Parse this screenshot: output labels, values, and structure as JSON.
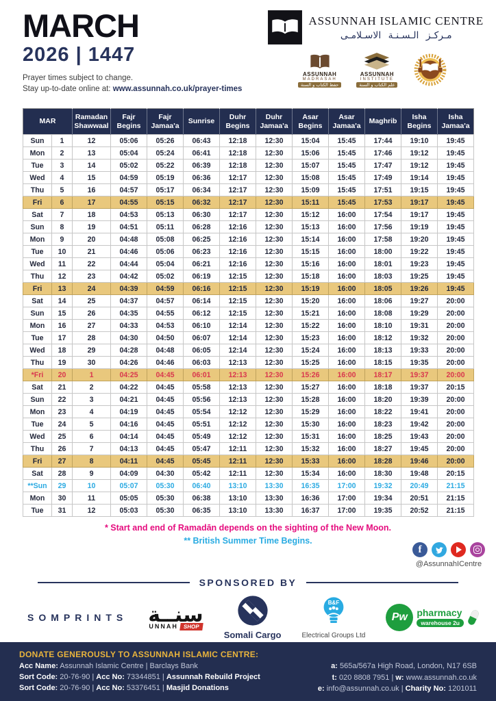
{
  "header": {
    "month": "MARCH",
    "year_line": "2026 | 1447",
    "note_line1": "Prayer times subject to change.",
    "note_line2_prefix": "Stay up-to-date online at: ",
    "note_line2_url": "www.assunnah.co.uk/prayer-times",
    "brand": {
      "name_en": "ASSUNNAH ISLAMIC CENTRE",
      "name_ar": "مـركـز الـسـنـة الاسـلامـى",
      "madrasah": {
        "line1": "ASSUNNAH",
        "line2": "MADRASAH",
        "line3": "حفظ الكتاب و السنة"
      },
      "institute": {
        "line1": "ASSUNNAH",
        "line2": "INSTITUTE",
        "line3": "علم الكتاب و السنة"
      }
    }
  },
  "table": {
    "col_headers": [
      "MAR",
      "Ramadan\nShawwaal",
      "Fajr\nBegins",
      "Fajr\nJamaa'a",
      "Sunrise",
      "Duhr\nBegins",
      "Duhr\nJamaa'a",
      "Asar\nBegins",
      "Asar\nJamaa'a",
      "Maghrib",
      "Isha\nBegins",
      "Isha\nJamaa'a"
    ],
    "rows": [
      {
        "day": "Sun",
        "date": "1",
        "ramadan": "12",
        "times": [
          "05:06",
          "05:26",
          "06:43",
          "12:18",
          "12:30",
          "15:04",
          "15:45",
          "17:44",
          "19:10",
          "19:45"
        ],
        "style": "default"
      },
      {
        "day": "Mon",
        "date": "2",
        "ramadan": "13",
        "times": [
          "05:04",
          "05:24",
          "06:41",
          "12:18",
          "12:30",
          "15:06",
          "15:45",
          "17:46",
          "19:12",
          "19:45"
        ],
        "style": "default"
      },
      {
        "day": "Tue",
        "date": "3",
        "ramadan": "14",
        "times": [
          "05:02",
          "05:22",
          "06:39",
          "12:18",
          "12:30",
          "15:07",
          "15:45",
          "17:47",
          "19:12",
          "19:45"
        ],
        "style": "default"
      },
      {
        "day": "Wed",
        "date": "4",
        "ramadan": "15",
        "times": [
          "04:59",
          "05:19",
          "06:36",
          "12:17",
          "12:30",
          "15:08",
          "15:45",
          "17:49",
          "19:14",
          "19:45"
        ],
        "style": "default"
      },
      {
        "day": "Thu",
        "date": "5",
        "ramadan": "16",
        "times": [
          "04:57",
          "05:17",
          "06:34",
          "12:17",
          "12:30",
          "15:09",
          "15:45",
          "17:51",
          "19:15",
          "19:45"
        ],
        "style": "default"
      },
      {
        "day": "Fri",
        "date": "6",
        "ramadan": "17",
        "times": [
          "04:55",
          "05:15",
          "06:32",
          "12:17",
          "12:30",
          "15:11",
          "15:45",
          "17:53",
          "19:17",
          "19:45"
        ],
        "style": "gold"
      },
      {
        "day": "Sat",
        "date": "7",
        "ramadan": "18",
        "times": [
          "04:53",
          "05:13",
          "06:30",
          "12:17",
          "12:30",
          "15:12",
          "16:00",
          "17:54",
          "19:17",
          "19:45"
        ],
        "style": "default"
      },
      {
        "day": "Sun",
        "date": "8",
        "ramadan": "19",
        "times": [
          "04:51",
          "05:11",
          "06:28",
          "12:16",
          "12:30",
          "15:13",
          "16:00",
          "17:56",
          "19:19",
          "19:45"
        ],
        "style": "default"
      },
      {
        "day": "Mon",
        "date": "9",
        "ramadan": "20",
        "times": [
          "04:48",
          "05:08",
          "06:25",
          "12:16",
          "12:30",
          "15:14",
          "16:00",
          "17:58",
          "19:20",
          "19:45"
        ],
        "style": "default"
      },
      {
        "day": "Tue",
        "date": "10",
        "ramadan": "21",
        "times": [
          "04:46",
          "05:06",
          "06:23",
          "12:16",
          "12:30",
          "15:15",
          "16:00",
          "18:00",
          "19:22",
          "19:45"
        ],
        "style": "default"
      },
      {
        "day": "Wed",
        "date": "11",
        "ramadan": "22",
        "times": [
          "04:44",
          "05:04",
          "06:21",
          "12:16",
          "12:30",
          "15:16",
          "16:00",
          "18:01",
          "19:23",
          "19:45"
        ],
        "style": "default"
      },
      {
        "day": "Thu",
        "date": "12",
        "ramadan": "23",
        "times": [
          "04:42",
          "05:02",
          "06:19",
          "12:15",
          "12:30",
          "15:18",
          "16:00",
          "18:03",
          "19:25",
          "19:45"
        ],
        "style": "default"
      },
      {
        "day": "Fri",
        "date": "13",
        "ramadan": "24",
        "times": [
          "04:39",
          "04:59",
          "06:16",
          "12:15",
          "12:30",
          "15:19",
          "16:00",
          "18:05",
          "19:26",
          "19:45"
        ],
        "style": "gold"
      },
      {
        "day": "Sat",
        "date": "14",
        "ramadan": "25",
        "times": [
          "04:37",
          "04:57",
          "06:14",
          "12:15",
          "12:30",
          "15:20",
          "16:00",
          "18:06",
          "19:27",
          "20:00"
        ],
        "style": "default"
      },
      {
        "day": "Sun",
        "date": "15",
        "ramadan": "26",
        "times": [
          "04:35",
          "04:55",
          "06:12",
          "12:15",
          "12:30",
          "15:21",
          "16:00",
          "18:08",
          "19:29",
          "20:00"
        ],
        "style": "default"
      },
      {
        "day": "Mon",
        "date": "16",
        "ramadan": "27",
        "times": [
          "04:33",
          "04:53",
          "06:10",
          "12:14",
          "12:30",
          "15:22",
          "16:00",
          "18:10",
          "19:31",
          "20:00"
        ],
        "style": "default"
      },
      {
        "day": "Tue",
        "date": "17",
        "ramadan": "28",
        "times": [
          "04:30",
          "04:50",
          "06:07",
          "12:14",
          "12:30",
          "15:23",
          "16:00",
          "18:12",
          "19:32",
          "20:00"
        ],
        "style": "default"
      },
      {
        "day": "Wed",
        "date": "18",
        "ramadan": "29",
        "times": [
          "04:28",
          "04:48",
          "06:05",
          "12:14",
          "12:30",
          "15:24",
          "16:00",
          "18:13",
          "19:33",
          "20:00"
        ],
        "style": "default"
      },
      {
        "day": "Thu",
        "date": "19",
        "ramadan": "30",
        "times": [
          "04:26",
          "04:46",
          "06:03",
          "12:13",
          "12:30",
          "15:25",
          "16:00",
          "18:15",
          "19:35",
          "20:00"
        ],
        "style": "default"
      },
      {
        "day": "*Fri",
        "date": "20",
        "ramadan": "1",
        "times": [
          "04:25",
          "04:45",
          "06:01",
          "12:13",
          "12:30",
          "15:26",
          "16:00",
          "18:17",
          "19:37",
          "20:00"
        ],
        "style": "gold-red"
      },
      {
        "day": "Sat",
        "date": "21",
        "ramadan": "2",
        "times": [
          "04:22",
          "04:45",
          "05:58",
          "12:13",
          "12:30",
          "15:27",
          "16:00",
          "18:18",
          "19:37",
          "20:15"
        ],
        "style": "default"
      },
      {
        "day": "Sun",
        "date": "22",
        "ramadan": "3",
        "times": [
          "04:21",
          "04:45",
          "05:56",
          "12:13",
          "12:30",
          "15:28",
          "16:00",
          "18:20",
          "19:39",
          "20:00"
        ],
        "style": "default"
      },
      {
        "day": "Mon",
        "date": "23",
        "ramadan": "4",
        "times": [
          "04:19",
          "04:45",
          "05:54",
          "12:12",
          "12:30",
          "15:29",
          "16:00",
          "18:22",
          "19:41",
          "20:00"
        ],
        "style": "default"
      },
      {
        "day": "Tue",
        "date": "24",
        "ramadan": "5",
        "times": [
          "04:16",
          "04:45",
          "05:51",
          "12:12",
          "12:30",
          "15:30",
          "16:00",
          "18:23",
          "19:42",
          "20:00"
        ],
        "style": "default"
      },
      {
        "day": "Wed",
        "date": "25",
        "ramadan": "6",
        "times": [
          "04:14",
          "04:45",
          "05:49",
          "12:12",
          "12:30",
          "15:31",
          "16:00",
          "18:25",
          "19:43",
          "20:00"
        ],
        "style": "default"
      },
      {
        "day": "Thu",
        "date": "26",
        "ramadan": "7",
        "times": [
          "04:13",
          "04:45",
          "05:47",
          "12:11",
          "12:30",
          "15:32",
          "16:00",
          "18:27",
          "19:45",
          "20:00"
        ],
        "style": "default"
      },
      {
        "day": "Fri",
        "date": "27",
        "ramadan": "8",
        "times": [
          "04:11",
          "04:45",
          "05:45",
          "12:11",
          "12:30",
          "15:33",
          "16:00",
          "18:28",
          "19:46",
          "20:00"
        ],
        "style": "gold"
      },
      {
        "day": "Sat",
        "date": "28",
        "ramadan": "9",
        "times": [
          "04:09",
          "04:30",
          "05:42",
          "12:11",
          "12:30",
          "15:34",
          "16:00",
          "18:30",
          "19:48",
          "20:15"
        ],
        "style": "default"
      },
      {
        "day": "**Sun",
        "date": "29",
        "ramadan": "10",
        "times": [
          "05:07",
          "05:30",
          "06:40",
          "13:10",
          "13:30",
          "16:35",
          "17:00",
          "19:32",
          "20:49",
          "21:15"
        ],
        "style": "blue"
      },
      {
        "day": "Mon",
        "date": "30",
        "ramadan": "11",
        "times": [
          "05:05",
          "05:30",
          "06:38",
          "13:10",
          "13:30",
          "16:36",
          "17:00",
          "19:34",
          "20:51",
          "21:15"
        ],
        "style": "default"
      },
      {
        "day": "Tue",
        "date": "31",
        "ramadan": "12",
        "times": [
          "05:03",
          "05:30",
          "06:35",
          "13:10",
          "13:30",
          "16:37",
          "17:00",
          "19:35",
          "20:52",
          "21:15"
        ],
        "style": "default"
      }
    ]
  },
  "footnotes": {
    "ramadan_note": "* Start and end of Ramadān depends on the sighting of the New Moon.",
    "bst_note": "** British Summer Time Begins."
  },
  "social": {
    "handle": "@AssunnahICentre"
  },
  "sponsored_by_label": "SPONSORED BY",
  "sponsors": {
    "somprints": "SOMPRINTS",
    "sunnah_shop": {
      "arabic": "سنــة",
      "latin": "UNNAH",
      "badge": "SHOP"
    },
    "somali_cargo": "Somali Cargo",
    "bf_electrical": {
      "bulb_text": "B&F",
      "label": "Electrical Groups Ltd"
    },
    "pharmacy": {
      "circle": "Pw",
      "line1": "pharmacy",
      "line2": "warehouse 2u"
    }
  },
  "footer": {
    "heading": "DONATE GENEROUSLY TO ASSUNNAH ISLAMIC CENTRE:",
    "left_lines": [
      [
        {
          "t": "Acc Name:",
          "b": true
        },
        {
          "t": " Assunnah Islamic Centre | Barclays Bank",
          "b": false
        }
      ],
      [
        {
          "t": "Sort Code:",
          "b": true
        },
        {
          "t": " 20-76-90 | ",
          "b": false
        },
        {
          "t": "Acc No:",
          "b": true
        },
        {
          "t": " 73344851 | ",
          "b": false
        },
        {
          "t": "Assunnah Rebuild Project",
          "b": true
        }
      ],
      [
        {
          "t": "Sort Code:",
          "b": true
        },
        {
          "t": " 20-76-90 | ",
          "b": false
        },
        {
          "t": "Acc No:",
          "b": true
        },
        {
          "t": " 53376451 | ",
          "b": false
        },
        {
          "t": "Masjid Donations",
          "b": true
        }
      ]
    ],
    "right_lines": [
      [
        {
          "t": "a:",
          "b": true
        },
        {
          "t": " 565a/567a High Road, London, N17 6SB",
          "b": false
        }
      ],
      [
        {
          "t": "t:",
          "b": true
        },
        {
          "t": " 020 8808 7951 | ",
          "b": false
        },
        {
          "t": "w:",
          "b": true
        },
        {
          "t": " www.assunnah.co.uk",
          "b": false
        }
      ],
      [
        {
          "t": "e:",
          "b": true
        },
        {
          "t": " info@assunnah.co.uk | ",
          "b": false
        },
        {
          "t": "Charity No:",
          "b": true
        },
        {
          "t": " 1201011",
          "b": false
        }
      ]
    ]
  }
}
